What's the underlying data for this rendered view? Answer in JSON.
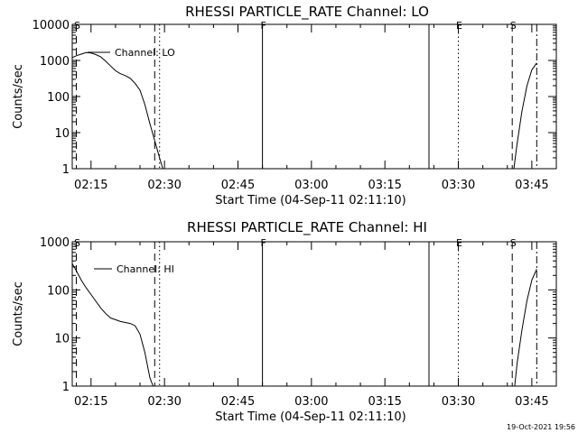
{
  "footer": {
    "timestamp": "19-Oct-2021 19:56"
  },
  "colors": {
    "background": "#ffffff",
    "foreground": "#000000"
  },
  "chart_data": [
    {
      "type": "line",
      "title": "RHESSI PARTICLE_RATE Channel: LO",
      "ylabel": "Counts/sec",
      "xlabel": "Start Time (04-Sep-11 02:11:10)",
      "yscale": "log",
      "ylim": [
        1,
        10000
      ],
      "xlim": [
        "02:11:10",
        "03:50:00"
      ],
      "y_ticks": [
        1,
        10,
        100,
        1000,
        10000
      ],
      "y_tick_labels": [
        "1",
        "10",
        "100",
        "1000",
        "10000"
      ],
      "x_ticks": [
        "02:15",
        "02:30",
        "02:45",
        "03:00",
        "03:15",
        "03:30",
        "03:45"
      ],
      "legend": {
        "entries": [
          "Channel: LO"
        ],
        "position": "top-left"
      },
      "markers": [
        {
          "time": "02:12",
          "label": "S",
          "style": "dashed"
        },
        {
          "time": "02:28",
          "label": "",
          "style": "dashed"
        },
        {
          "time": "02:29",
          "label": "",
          "style": "dotted"
        },
        {
          "time": "02:50",
          "label": "F",
          "style": "solid"
        },
        {
          "time": "03:24",
          "label": "",
          "style": "solid"
        },
        {
          "time": "03:30",
          "label": "E",
          "style": "dotted"
        },
        {
          "time": "03:41",
          "label": "S",
          "style": "dashed"
        },
        {
          "time": "03:46",
          "label": "",
          "style": "dashdot"
        }
      ],
      "series": [
        {
          "name": "Channel: LO",
          "segments": [
            {
              "x": [
                "02:11:10",
                "02:12:00",
                "02:13:00",
                "02:14:00",
                "02:15:00",
                "02:16:00",
                "02:17:00",
                "02:18:00",
                "02:19:00",
                "02:20:00",
                "02:21:00",
                "02:22:00",
                "02:23:00",
                "02:24:00",
                "02:25:00",
                "02:26:00",
                "02:27:00",
                "02:28:00",
                "02:29:00",
                "02:29:40"
              ],
              "y": [
                1200,
                1350,
                1500,
                1650,
                1600,
                1450,
                1250,
                950,
                700,
                520,
                430,
                380,
                320,
                230,
                150,
                60,
                18,
                6,
                2,
                1
              ]
            },
            {
              "x": [
                "03:41:20",
                "03:42:00",
                "03:43:00",
                "03:44:00",
                "03:45:00",
                "03:46:00"
              ],
              "y": [
                1,
                5,
                40,
                200,
                550,
                850
              ]
            }
          ]
        }
      ]
    },
    {
      "type": "line",
      "title": "RHESSI PARTICLE_RATE Channel: HI",
      "ylabel": "Counts/sec",
      "xlabel": "Start Time (04-Sep-11 02:11:10)",
      "yscale": "log",
      "ylim": [
        1,
        1000
      ],
      "xlim": [
        "02:11:10",
        "03:50:00"
      ],
      "y_ticks": [
        1,
        10,
        100,
        1000
      ],
      "y_tick_labels": [
        "1",
        "10",
        "100",
        "1000"
      ],
      "x_ticks": [
        "02:15",
        "02:30",
        "02:45",
        "03:00",
        "03:15",
        "03:30",
        "03:45"
      ],
      "legend": {
        "entries": [
          "Channel: HI"
        ],
        "position": "top-left"
      },
      "markers": [
        {
          "time": "02:12",
          "label": "S",
          "style": "dashed"
        },
        {
          "time": "02:28",
          "label": "",
          "style": "dashed"
        },
        {
          "time": "02:29",
          "label": "",
          "style": "dotted"
        },
        {
          "time": "02:50",
          "label": "F",
          "style": "solid"
        },
        {
          "time": "03:24",
          "label": "",
          "style": "solid"
        },
        {
          "time": "03:30",
          "label": "E",
          "style": "dotted"
        },
        {
          "time": "03:41",
          "label": "S",
          "style": "dashed"
        },
        {
          "time": "03:46",
          "label": "",
          "style": "dashdot"
        }
      ],
      "series": [
        {
          "name": "Channel: HI",
          "segments": [
            {
              "x": [
                "02:11:10",
                "02:12:00",
                "02:13:00",
                "02:14:00",
                "02:15:00",
                "02:16:00",
                "02:17:00",
                "02:18:00",
                "02:19:00",
                "02:20:00",
                "02:21:00",
                "02:22:00",
                "02:23:00",
                "02:24:00",
                "02:25:00",
                "02:26:00",
                "02:27:00",
                "02:27:40"
              ],
              "y": [
                350,
                250,
                160,
                110,
                80,
                58,
                42,
                32,
                26,
                24,
                22,
                21,
                20,
                18,
                12,
                5,
                1.5,
                1
              ]
            },
            {
              "x": [
                "03:41:30",
                "03:42:00",
                "03:43:00",
                "03:44:00",
                "03:45:00",
                "03:46:00"
              ],
              "y": [
                1,
                3,
                15,
                60,
                160,
                270
              ]
            }
          ]
        }
      ]
    }
  ]
}
